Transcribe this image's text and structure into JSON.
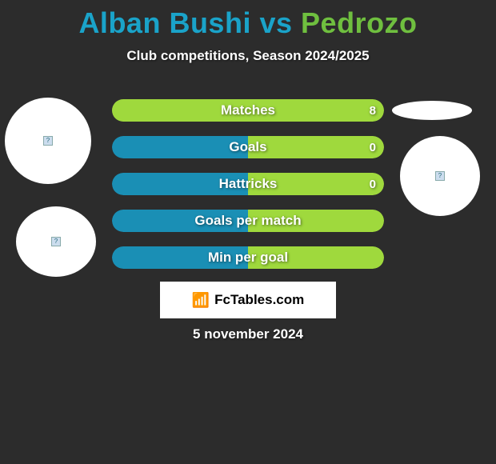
{
  "background_color": "#2c2c2c",
  "title": {
    "player1": "Alban Bushi",
    "vs": "vs",
    "player2": "Pedrozo",
    "player1_color": "#1aa3c9",
    "player2_color": "#6fbf3f",
    "fontsize": 36
  },
  "subtitle": "Club competitions, Season 2024/2025",
  "colors": {
    "player1_fill": "#1a8fb5",
    "player2_fill": "#9fd93d",
    "text": "#ffffff"
  },
  "bars": [
    {
      "label": "Matches",
      "left_pct": 0,
      "right_pct": 100,
      "right_value": "8"
    },
    {
      "label": "Goals",
      "left_pct": 50,
      "right_pct": 50,
      "right_value": "0"
    },
    {
      "label": "Hattricks",
      "left_pct": 50,
      "right_pct": 50,
      "right_value": "0"
    },
    {
      "label": "Goals per match",
      "left_pct": 50,
      "right_pct": 50,
      "right_value": ""
    },
    {
      "label": "Min per goal",
      "left_pct": 50,
      "right_pct": 50,
      "right_value": ""
    }
  ],
  "brand": {
    "text": "FcTables.com",
    "logo_glyph": "📶"
  },
  "date": "5 november 2024",
  "avatars": {
    "placeholder_glyph": "?"
  }
}
